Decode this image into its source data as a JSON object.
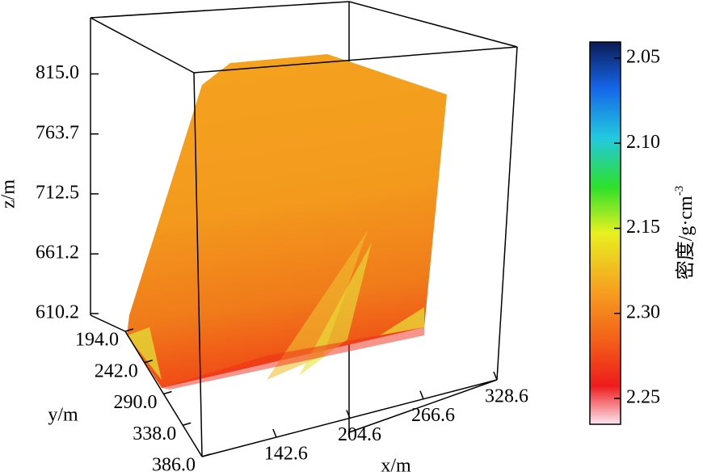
{
  "chart_data": {
    "type": "surface3d",
    "zlabel": "z/m",
    "ylabel": "y/m",
    "xlabel": "x/m",
    "zlim": [
      610.2,
      863.0
    ],
    "zticks": [
      {
        "value": 610.2,
        "label": "610.2"
      },
      {
        "value": 661.2,
        "label": "661.2"
      },
      {
        "value": 712.5,
        "label": "712.5"
      },
      {
        "value": 763.7,
        "label": "763.7"
      },
      {
        "value": 815.0,
        "label": "815.0"
      }
    ],
    "ylim": [
      194.0,
      386.0
    ],
    "yticks": [
      {
        "value": 194.0,
        "label": "194.0"
      },
      {
        "value": 242.0,
        "label": "242.0"
      },
      {
        "value": 290.0,
        "label": "290.0"
      },
      {
        "value": 338.0,
        "label": "338.0"
      },
      {
        "value": 386.0,
        "label": "386.0"
      }
    ],
    "xlim": [
      80.0,
      328.6
    ],
    "xticks": [
      {
        "value": 142.6,
        "label": "142.6"
      },
      {
        "value": 204.6,
        "label": "204.6"
      },
      {
        "value": 266.6,
        "label": "266.6"
      },
      {
        "value": 328.6,
        "label": "328.6"
      }
    ],
    "colorbar_labels": [
      "2.05",
      "2.10",
      "2.15",
      "2.30",
      "2.25"
    ],
    "colorbar_label": "密度/g·cm",
    "colorbar_label_sup": "-3"
  }
}
